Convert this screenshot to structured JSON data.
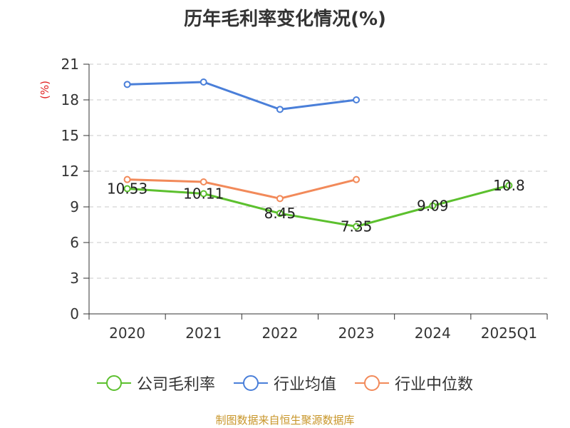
{
  "chart_data": {
    "type": "line",
    "title": "历年毛利率变化情况(%)",
    "ylabel": "(%)",
    "xlabel": "",
    "categories": [
      "2020",
      "2021",
      "2022",
      "2023",
      "2024",
      "2025Q1"
    ],
    "ylim": [
      0,
      21
    ],
    "yticks": [
      0,
      3,
      6,
      9,
      12,
      15,
      18,
      21
    ],
    "grid": true,
    "legend_position": "bottom",
    "series": [
      {
        "name": "公司毛利率",
        "color": "#5cc02e",
        "values": [
          10.53,
          10.11,
          8.45,
          7.35,
          9.09,
          10.8
        ],
        "labels": [
          "10.53",
          "10.11",
          "8.45",
          "7.35",
          "9.09",
          "10.8"
        ]
      },
      {
        "name": "行业均值",
        "color": "#4a7fd9",
        "values": [
          19.3,
          19.5,
          17.2,
          18.0,
          null,
          null
        ]
      },
      {
        "name": "行业中位数",
        "color": "#f28a5a",
        "values": [
          11.3,
          11.1,
          9.7,
          11.3,
          null,
          null
        ]
      }
    ]
  },
  "source": "制图数据来自恒生聚源数据库"
}
